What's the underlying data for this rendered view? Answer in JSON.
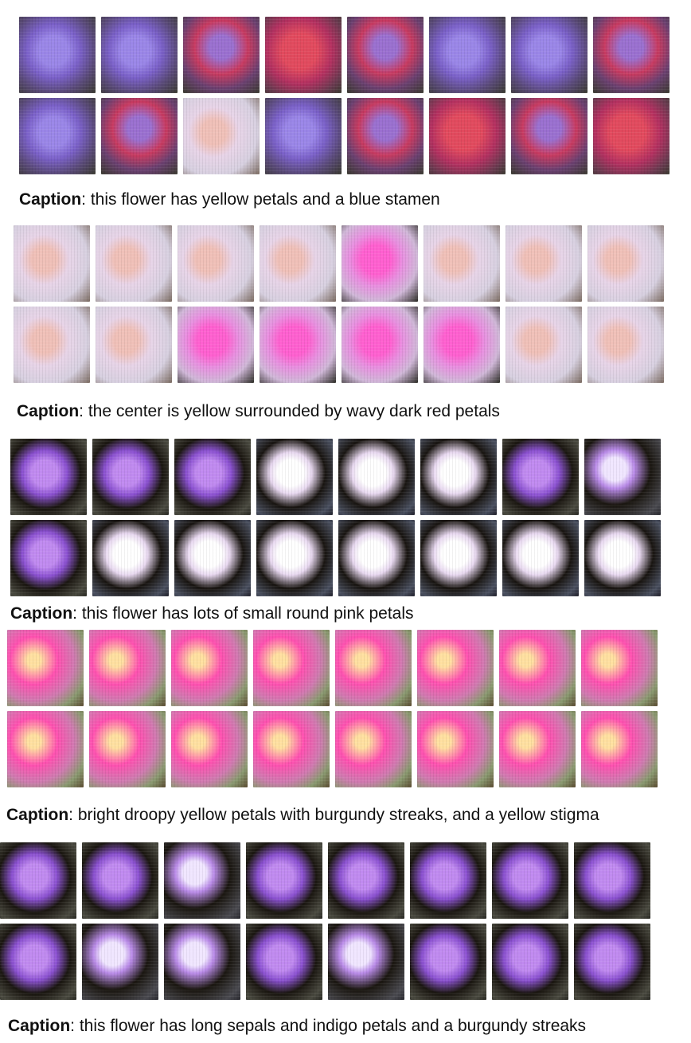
{
  "caption_label": "Caption",
  "blocks": [
    {
      "caption_text": ": this flower has yellow petals and a blue stamen",
      "tiles": [
        "p-indigo",
        "p-indigo",
        "p-redind",
        "p-red",
        "p-redind",
        "p-indigo",
        "p-indigo",
        "p-redind",
        "p-indigo",
        "p-redind",
        "p-pale",
        "p-indigo",
        "p-redind",
        "p-red",
        "p-redind",
        "p-red"
      ]
    },
    {
      "caption_text": ": the center is yellow surrounded by wavy dark red petals",
      "tiles": [
        "p-pale",
        "p-pale",
        "p-pale",
        "p-pale",
        "p-pink",
        "p-pale",
        "p-pale",
        "p-pale",
        "p-pale",
        "p-pale",
        "p-pink",
        "p-pink",
        "p-pink",
        "p-pink",
        "p-pale",
        "p-pale"
      ]
    },
    {
      "caption_text": ": this flower has lots of small round pink petals",
      "tiles": [
        "p-purp",
        "p-purp",
        "p-purp",
        "p-dark2",
        "p-dark2",
        "p-dark2",
        "p-purp",
        "p-dark",
        "p-purp",
        "p-dark2",
        "p-dark2",
        "p-dark2",
        "p-dark2",
        "p-dark2",
        "p-dark2",
        "p-dark2"
      ]
    },
    {
      "caption_text": ": bright droopy yellow petals with burgundy streaks, and a yellow stigma",
      "tiles": [
        "p-hot",
        "p-hot",
        "p-hot",
        "p-hot",
        "p-hot",
        "p-hot",
        "p-hot",
        "p-hot",
        "p-hot",
        "p-hot",
        "p-hot",
        "p-hot",
        "p-hot",
        "p-hot",
        "p-hot",
        "p-hot"
      ]
    },
    {
      "caption_text": ": this flower has long sepals and indigo petals and a burgundy streaks",
      "tiles": [
        "p-purp",
        "p-purp",
        "p-dark",
        "p-purp",
        "p-purp",
        "p-purp",
        "p-purp",
        "p-purp",
        "p-purp",
        "p-dark",
        "p-dark",
        "p-purp",
        "p-dark",
        "p-purp",
        "p-purp",
        "p-purp"
      ]
    }
  ]
}
